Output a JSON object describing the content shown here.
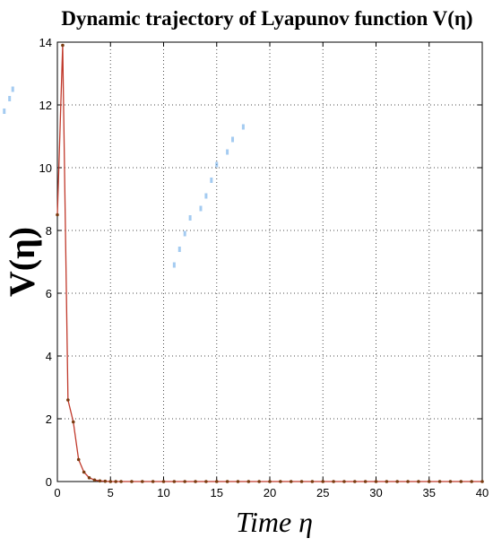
{
  "chart_data": {
    "type": "line",
    "title": "Dynamic trajectory of Lyapunov function V(η)",
    "xlabel": "Time η",
    "ylabel": "V(η)",
    "xlim": [
      0,
      40
    ],
    "ylim": [
      0,
      14
    ],
    "xticks": [
      0,
      5,
      10,
      15,
      20,
      25,
      30,
      35,
      40
    ],
    "yticks": [
      0,
      2,
      4,
      6,
      8,
      10,
      12,
      14
    ],
    "grid": true,
    "series": [
      {
        "color": "#c0392b",
        "marker_color": "#7a3b10",
        "x": [
          0,
          0.5,
          1.0,
          1.5,
          2.0,
          2.5,
          3.0,
          3.5,
          4.0,
          4.5,
          5.0,
          5.5,
          6,
          7,
          8,
          9,
          10,
          11,
          12,
          13,
          14,
          15,
          16,
          17,
          18,
          19,
          20,
          21,
          22,
          23,
          24,
          25,
          26,
          27,
          28,
          29,
          30,
          31,
          32,
          33,
          34,
          35,
          36,
          37,
          38,
          39,
          40
        ],
        "y": [
          8.5,
          13.9,
          2.6,
          1.9,
          0.7,
          0.3,
          0.12,
          0.05,
          0.02,
          0.01,
          0,
          0,
          0,
          0,
          0,
          0,
          0,
          0,
          0,
          0,
          0,
          0,
          0,
          0,
          0,
          0,
          0,
          0,
          0,
          0,
          0,
          0,
          0,
          0,
          0,
          0,
          0,
          0,
          0,
          0,
          0,
          0,
          0,
          0,
          0,
          0,
          0
        ]
      }
    ],
    "stray_marks": [
      {
        "x": -5.0,
        "y": 11.8
      },
      {
        "x": -4.5,
        "y": 12.2
      },
      {
        "x": -4.2,
        "y": 12.5
      },
      {
        "x": 11.0,
        "y": 6.9
      },
      {
        "x": 11.5,
        "y": 7.4
      },
      {
        "x": 12.0,
        "y": 7.9
      },
      {
        "x": 12.5,
        "y": 8.4
      },
      {
        "x": 13.5,
        "y": 8.7
      },
      {
        "x": 14.0,
        "y": 9.1
      },
      {
        "x": 14.5,
        "y": 9.6
      },
      {
        "x": 15.0,
        "y": 10.1
      },
      {
        "x": 16.0,
        "y": 10.5
      },
      {
        "x": 16.5,
        "y": 10.9
      },
      {
        "x": 17.5,
        "y": 11.3
      }
    ]
  }
}
